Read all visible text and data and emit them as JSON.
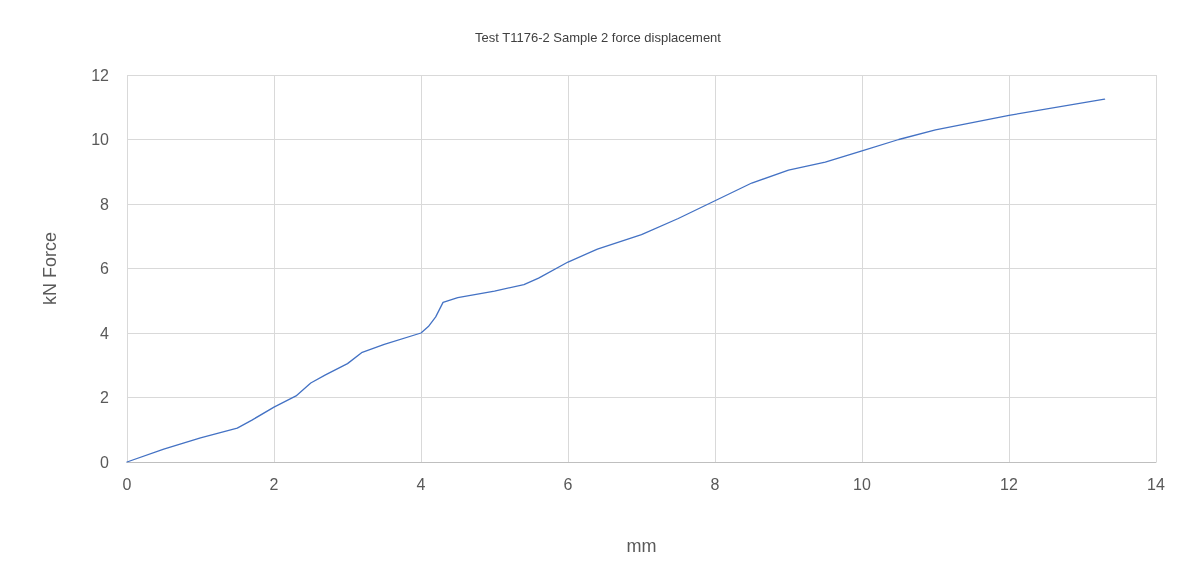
{
  "chart_data": {
    "type": "line",
    "title": "Test T1176-2 Sample 2 force displacement",
    "xlabel": "mm",
    "ylabel": "kN Force",
    "x": [
      0,
      0.5,
      1,
      1.5,
      1.7,
      2,
      2.3,
      2.5,
      2.7,
      3,
      3.2,
      3.5,
      4,
      4.1,
      4.2,
      4.3,
      4.5,
      5,
      5.4,
      5.6,
      6,
      6.4,
      7,
      7.5,
      8,
      8.5,
      9,
      9.5,
      10,
      10.5,
      11,
      12,
      13.3
    ],
    "series": [
      {
        "color": "#4472c4",
        "values": [
          0,
          0.4,
          0.75,
          1.05,
          1.3,
          1.7,
          2.05,
          2.45,
          2.7,
          3.05,
          3.4,
          3.65,
          4.0,
          4.2,
          4.5,
          4.95,
          5.1,
          5.3,
          5.5,
          5.7,
          6.2,
          6.6,
          7.05,
          7.55,
          8.1,
          8.65,
          9.05,
          9.3,
          9.65,
          10.0,
          10.3,
          10.75,
          11.25
        ]
      }
    ],
    "xlim": [
      0,
      14
    ],
    "xticks": [
      0,
      2,
      4,
      6,
      8,
      10,
      12,
      14
    ],
    "ylim": [
      0,
      12
    ],
    "yticks": [
      0,
      2,
      4,
      6,
      8,
      10,
      12
    ],
    "grid": true,
    "marker": "none",
    "line_style": "solid"
  }
}
